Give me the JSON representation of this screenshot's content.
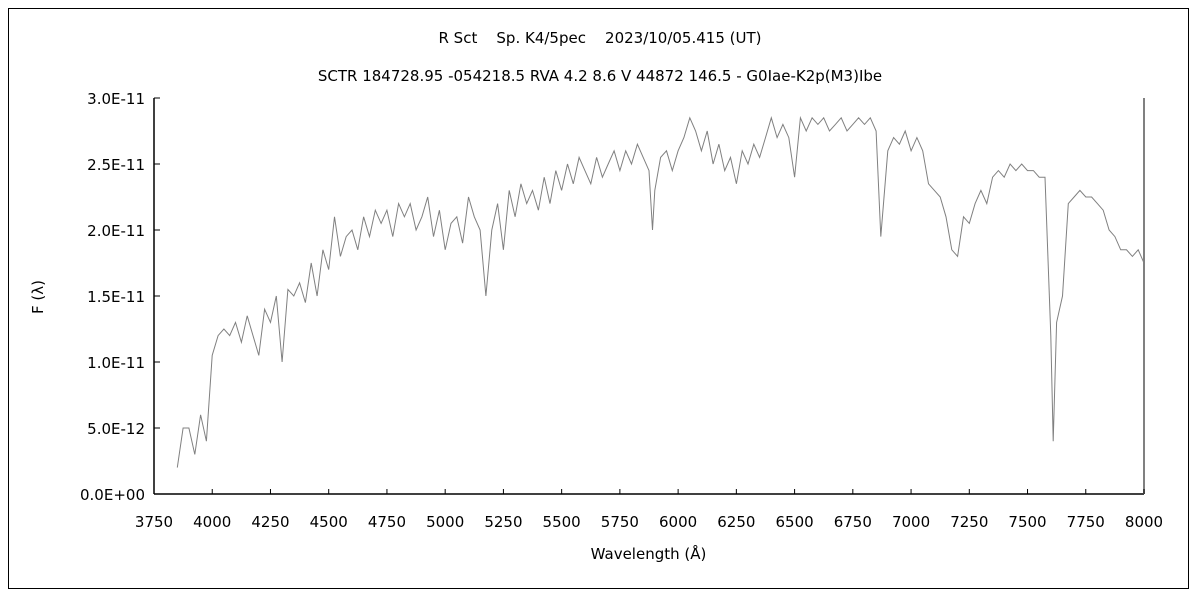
{
  "chart_data": {
    "type": "line",
    "title": "R Sct    Sp. K4/5pec    2023/10/05.415 (UT)",
    "subtitle": "SCTR 184728.95 -054218.5 RVA 4.2 8.6 V 44872 146.5 - G0Iae-K2p(M3)Ibe",
    "xlabel": "Wavelength (Å)",
    "ylabel": "F (λ)",
    "xlim": [
      3750,
      8000
    ],
    "ylim": [
      0,
      3e-11
    ],
    "xticks": [
      "3750",
      "4000",
      "4250",
      "4500",
      "4750",
      "5000",
      "5250",
      "5500",
      "5750",
      "6000",
      "6250",
      "6500",
      "6750",
      "7000",
      "7250",
      "7500",
      "7750",
      "8000"
    ],
    "yticks": [
      "0.0E+00",
      "5.0E-12",
      "1.0E-11",
      "1.5E-11",
      "2.0E-11",
      "2.5E-11",
      "3.0E-11"
    ],
    "grid": false,
    "legend": "none",
    "line_color": "#808080",
    "series": [
      {
        "x": [
          3850,
          3875,
          3900,
          3925,
          3950,
          3975,
          4000,
          4025,
          4050,
          4075,
          4100,
          4125,
          4150,
          4175,
          4200,
          4225,
          4250,
          4275,
          4300,
          4325,
          4350,
          4375,
          4400,
          4425,
          4450,
          4475,
          4500,
          4525,
          4550,
          4575,
          4600,
          4625,
          4650,
          4675,
          4700,
          4725,
          4750,
          4775,
          4800,
          4825,
          4850,
          4875,
          4900,
          4925,
          4950,
          4975,
          5000,
          5025,
          5050,
          5075,
          5100,
          5125,
          5150,
          5175,
          5200,
          5225,
          5250,
          5275,
          5300,
          5325,
          5350,
          5375,
          5400,
          5425,
          5450,
          5475,
          5500,
          5525,
          5550,
          5575,
          5600,
          5625,
          5650,
          5675,
          5700,
          5725,
          5750,
          5775,
          5800,
          5825,
          5850,
          5875,
          5890,
          5900,
          5925,
          5950,
          5975,
          6000,
          6025,
          6050,
          6075,
          6100,
          6125,
          6150,
          6175,
          6200,
          6225,
          6250,
          6275,
          6300,
          6325,
          6350,
          6375,
          6400,
          6425,
          6450,
          6475,
          6500,
          6525,
          6550,
          6575,
          6600,
          6625,
          6650,
          6675,
          6700,
          6725,
          6750,
          6775,
          6800,
          6825,
          6850,
          6870,
          6900,
          6925,
          6950,
          6975,
          7000,
          7025,
          7050,
          7075,
          7100,
          7125,
          7150,
          7175,
          7200,
          7225,
          7250,
          7275,
          7300,
          7325,
          7350,
          7375,
          7400,
          7425,
          7450,
          7475,
          7500,
          7525,
          7550,
          7575,
          7600,
          7610,
          7625,
          7650,
          7675,
          7700,
          7725,
          7750,
          7775,
          7800,
          7825,
          7850,
          7875,
          7900,
          7925,
          7950,
          7975,
          8000
        ],
        "y": [
          2e-12,
          5e-12,
          5e-12,
          3e-12,
          6e-12,
          4e-12,
          1.05e-11,
          1.2e-11,
          1.25e-11,
          1.2e-11,
          1.3e-11,
          1.15e-11,
          1.35e-11,
          1.2e-11,
          1.05e-11,
          1.4e-11,
          1.3e-11,
          1.5e-11,
          1e-11,
          1.55e-11,
          1.5e-11,
          1.6e-11,
          1.45e-11,
          1.75e-11,
          1.5e-11,
          1.85e-11,
          1.7e-11,
          2.1e-11,
          1.8e-11,
          1.95e-11,
          2e-11,
          1.85e-11,
          2.1e-11,
          1.95e-11,
          2.15e-11,
          2.05e-11,
          2.15e-11,
          1.95e-11,
          2.2e-11,
          2.1e-11,
          2.2e-11,
          2e-11,
          2.1e-11,
          2.25e-11,
          1.95e-11,
          2.15e-11,
          1.85e-11,
          2.05e-11,
          2.1e-11,
          1.9e-11,
          2.25e-11,
          2.1e-11,
          2e-11,
          1.5e-11,
          2e-11,
          2.2e-11,
          1.85e-11,
          2.3e-11,
          2.1e-11,
          2.35e-11,
          2.2e-11,
          2.3e-11,
          2.15e-11,
          2.4e-11,
          2.2e-11,
          2.45e-11,
          2.3e-11,
          2.5e-11,
          2.35e-11,
          2.55e-11,
          2.45e-11,
          2.35e-11,
          2.55e-11,
          2.4e-11,
          2.5e-11,
          2.6e-11,
          2.45e-11,
          2.6e-11,
          2.5e-11,
          2.65e-11,
          2.55e-11,
          2.45e-11,
          2e-11,
          2.3e-11,
          2.55e-11,
          2.6e-11,
          2.45e-11,
          2.6e-11,
          2.7e-11,
          2.85e-11,
          2.75e-11,
          2.6e-11,
          2.75e-11,
          2.5e-11,
          2.65e-11,
          2.45e-11,
          2.55e-11,
          2.35e-11,
          2.6e-11,
          2.5e-11,
          2.65e-11,
          2.55e-11,
          2.7e-11,
          2.85e-11,
          2.7e-11,
          2.8e-11,
          2.7e-11,
          2.4e-11,
          2.85e-11,
          2.75e-11,
          2.85e-11,
          2.8e-11,
          2.85e-11,
          2.75e-11,
          2.8e-11,
          2.85e-11,
          2.75e-11,
          2.8e-11,
          2.85e-11,
          2.8e-11,
          2.85e-11,
          2.75e-11,
          1.95e-11,
          2.6e-11,
          2.7e-11,
          2.65e-11,
          2.75e-11,
          2.6e-11,
          2.7e-11,
          2.6e-11,
          2.35e-11,
          2.3e-11,
          2.25e-11,
          2.1e-11,
          1.85e-11,
          1.8e-11,
          2.1e-11,
          2.05e-11,
          2.2e-11,
          2.3e-11,
          2.2e-11,
          2.4e-11,
          2.45e-11,
          2.4e-11,
          2.5e-11,
          2.45e-11,
          2.5e-11,
          2.45e-11,
          2.45e-11,
          2.4e-11,
          2.4e-11,
          1.2e-11,
          4e-12,
          1.3e-11,
          1.5e-11,
          2.2e-11,
          2.25e-11,
          2.3e-11,
          2.25e-11,
          2.25e-11,
          2.2e-11,
          2.15e-11,
          2e-11,
          1.95e-11,
          1.85e-11,
          1.85e-11,
          1.8e-11,
          1.85e-11,
          1.75e-11
        ]
      }
    ]
  }
}
